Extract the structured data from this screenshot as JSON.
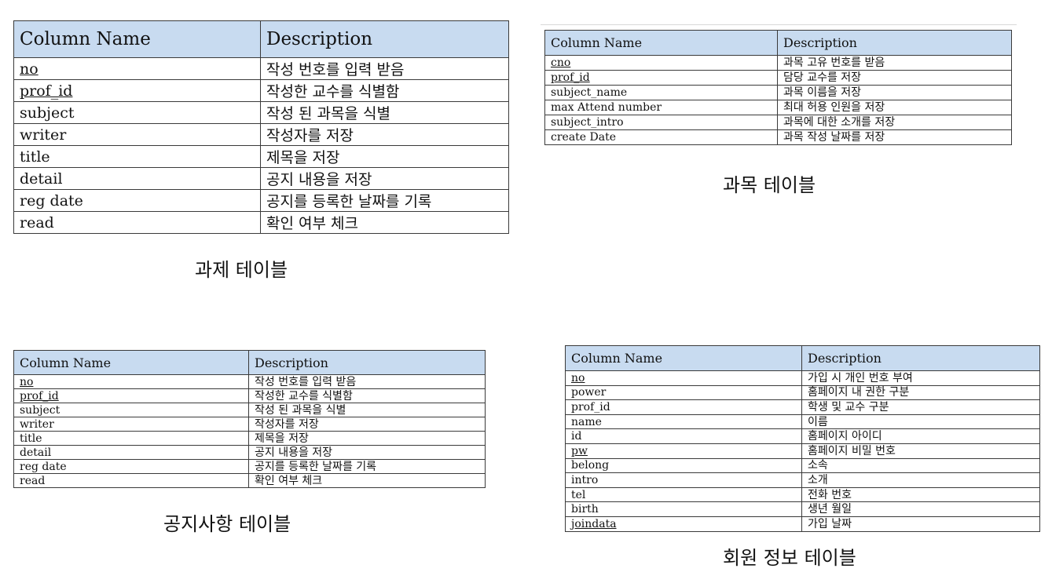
{
  "tables": [
    {
      "caption": "과제 테이블",
      "header": [
        "Column Name",
        "Description"
      ],
      "rows": [
        {
          "name": "no",
          "desc": "작성 번호를 입력 받음"
        },
        {
          "name": "prof_id",
          "desc": "작성한 교수를 식별함"
        },
        {
          "name": "subject",
          "desc": "작성 된 과목을 식별"
        },
        {
          "name": "writer",
          "desc": "작성자를 저장"
        },
        {
          "name": "title",
          "desc": "제목을 저장"
        },
        {
          "name": "detail",
          "desc": "공지 내용을 저장"
        },
        {
          "name": "reg date",
          "desc": "공지를 등록한 날짜를 기록"
        },
        {
          "name": "read",
          "desc": "확인 여부 체크"
        }
      ]
    },
    {
      "caption": "과목 테이블",
      "header": [
        "Column Name",
        "Description"
      ],
      "rows": [
        {
          "name": "cno",
          "desc": "과목 고유 번호를 받음"
        },
        {
          "name": "prof_id",
          "desc": "담당 교수를 저장"
        },
        {
          "name": "subject_name",
          "desc": "과목 이름을 저장"
        },
        {
          "name": "max Attend number",
          "desc": "최대 허용 인원을 저장"
        },
        {
          "name": "subject_intro",
          "desc": "과목에 대한 소개를 저장"
        },
        {
          "name": "create Date",
          "desc": "과목 작성 날짜를 저장"
        }
      ]
    },
    {
      "caption": "공지사항 테이블",
      "header": [
        "Column Name",
        "Description"
      ],
      "rows": [
        {
          "name": "no",
          "desc": "작성 번호를 입력 받음"
        },
        {
          "name": "prof_id",
          "desc": "작성한 교수를 식별함"
        },
        {
          "name": "subject",
          "desc": "작성 된 과목을 식별"
        },
        {
          "name": "writer",
          "desc": "작성자를 저장"
        },
        {
          "name": "title",
          "desc": "제목을 저장"
        },
        {
          "name": "detail",
          "desc": "공지 내용을 저장"
        },
        {
          "name": "reg date",
          "desc": "공지를 등록한 날짜를 기록"
        },
        {
          "name": "read",
          "desc": "확인 여부 체크"
        }
      ]
    },
    {
      "caption": "회원 정보 테이블",
      "header": [
        "Column Name",
        "Description"
      ],
      "rows": [
        {
          "name": "no",
          "desc": "가입 시 개인 번호 부여"
        },
        {
          "name": "power",
          "desc": "홈페이지 내 권한 구분"
        },
        {
          "name": "prof_id",
          "desc": "학생 및 교수 구분"
        },
        {
          "name": "name",
          "desc": "이름"
        },
        {
          "name": "id",
          "desc": "홈페이지 아이디"
        },
        {
          "name": "pw",
          "desc": "홈페이지 비밀 번호"
        },
        {
          "name": "belong",
          "desc": "소속"
        },
        {
          "name": "intro",
          "desc": "소개"
        },
        {
          "name": "tel",
          "desc": "전화 번호"
        },
        {
          "name": "birth",
          "desc": "생년 월일"
        },
        {
          "name": "joindata",
          "desc": "가입 날짜"
        }
      ]
    }
  ],
  "colors": {
    "header_bg": "#c8dbf0",
    "border": "#3a3a3a"
  }
}
